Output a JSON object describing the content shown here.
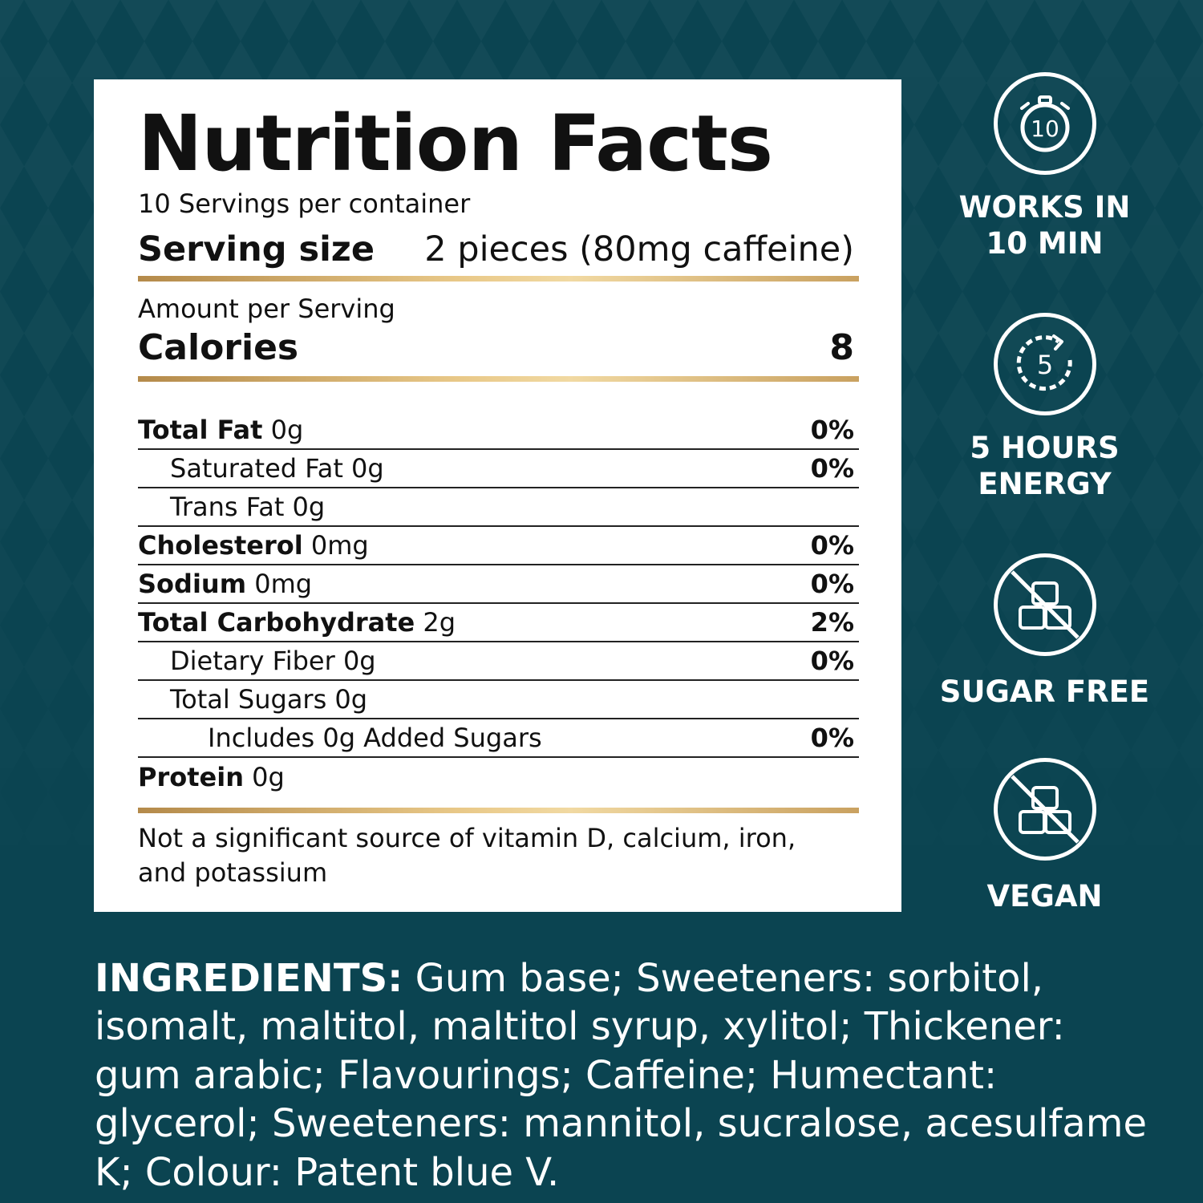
{
  "nutrition": {
    "title": "Nutrition Facts",
    "servings_per_container": "10 Servings per container",
    "serving_size_label": "Serving size",
    "serving_size_value": "2 pieces (80mg caffeine)",
    "amount_per_serving": "Amount per Serving",
    "calories_label": "Calories",
    "calories_value": "8",
    "rows": [
      {
        "bold": "Total Fat",
        "rest": " 0g",
        "dv": "0%"
      },
      {
        "bold": "",
        "rest": "Saturated Fat 0g",
        "dv": "0%"
      },
      {
        "bold": "",
        "rest": "Trans Fat 0g",
        "dv": ""
      },
      {
        "bold": "Cholesterol",
        "rest": " 0mg",
        "dv": "0%"
      },
      {
        "bold": "Sodium",
        "rest": " 0mg",
        "dv": "0%"
      },
      {
        "bold": "Total Carbohydrate",
        "rest": " 2g",
        "dv": "2%"
      },
      {
        "bold": "",
        "rest": "Dietary Fiber 0g",
        "dv": "0%"
      },
      {
        "bold": "",
        "rest": "Total Sugars 0g",
        "dv": ""
      },
      {
        "bold": "",
        "rest": "Includes 0g Added Sugars",
        "dv": "0%"
      },
      {
        "bold": "Protein",
        "rest": " 0g",
        "dv": ""
      }
    ],
    "footnote": "Not a significant source of vitamin D, calcium, iron, and potassium"
  },
  "badges": [
    {
      "icon": "stopwatch-icon",
      "number": "10",
      "label": "WORKS IN\n10 MIN"
    },
    {
      "icon": "clock-refresh-icon",
      "number": "5",
      "label": "5 HOURS\nENERGY"
    },
    {
      "icon": "no-sugar-cubes-icon",
      "label": "SUGAR FREE"
    },
    {
      "icon": "no-sugar-cubes-icon",
      "label": "VEGAN"
    }
  ],
  "ingredients": {
    "heading": "INGREDIENTS:",
    "text": " Gum base; Sweeteners: sorbitol, isomalt, maltitol, maltitol syrup, xylitol; Thickener: gum arabic; Flavourings; Caffeine; Humectant: glycerol; Sweeteners: mannitol, sucralose, acesulfame K; Colour: Patent blue V."
  },
  "colors": {
    "background": "#0b4451",
    "panel": "#ffffff",
    "gold_rule": "#d4ad6a",
    "badge": "#ffffff"
  }
}
